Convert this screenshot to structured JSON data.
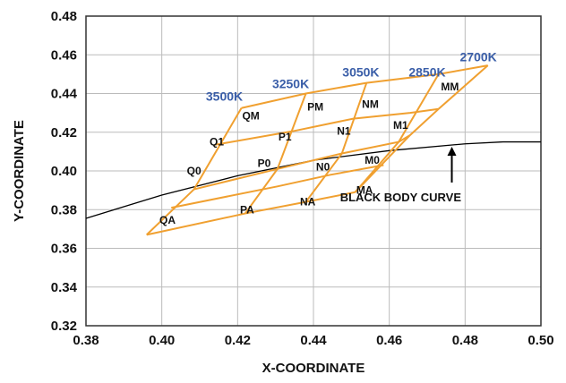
{
  "chart_data": {
    "type": "line",
    "xlabel": "X-COORDINATE",
    "ylabel": "Y-COORDINATE",
    "xlim": [
      0.38,
      0.5
    ],
    "ylim": [
      0.32,
      0.48
    ],
    "x_ticks": [
      "0.38",
      "0.40",
      "0.42",
      "0.44",
      "0.46",
      "0.48",
      "0.50"
    ],
    "y_ticks": [
      "0.32",
      "0.34",
      "0.36",
      "0.38",
      "0.40",
      "0.42",
      "0.44",
      "0.46",
      "0.48"
    ],
    "grid": true,
    "colors": {
      "grid_lines": "#f0a030",
      "curve": "#000000",
      "cct_text": "#3a5ea8",
      "axis_grid": "#bbbbbb"
    },
    "black_body_curve": {
      "label": "BLACK BODY CURVE",
      "points": [
        [
          0.38,
          0.3755
        ],
        [
          0.4,
          0.3875
        ],
        [
          0.42,
          0.3975
        ],
        [
          0.44,
          0.4055
        ],
        [
          0.46,
          0.4105
        ],
        [
          0.48,
          0.414
        ],
        [
          0.49,
          0.415
        ],
        [
          0.5,
          0.415
        ]
      ]
    },
    "bin_grid": {
      "cct_lines": [
        {
          "name": "3500K",
          "points": [
            [
              0.396,
              0.367
            ],
            [
              0.4085,
              0.3905
            ],
            [
              0.421,
              0.4325
            ]
          ]
        },
        {
          "name": "3250K",
          "points": [
            [
              0.422,
              0.378
            ],
            [
              0.4305,
              0.401
            ],
            [
              0.438,
              0.44
            ]
          ]
        },
        {
          "name": "3050K",
          "points": [
            [
              0.438,
              0.384
            ],
            [
              0.4475,
              0.409
            ],
            [
              0.454,
              0.4455
            ]
          ]
        },
        {
          "name": "2850K",
          "points": [
            [
              0.451,
              0.389
            ],
            [
              0.4625,
              0.415
            ],
            [
              0.473,
              0.45
            ]
          ]
        },
        {
          "name": "2700K",
          "points": [
            [
              0.486,
              0.4545
            ]
          ]
        }
      ],
      "cross_lines": [
        [
          [
            0.396,
            0.367
          ],
          [
            0.422,
            0.378
          ],
          [
            0.438,
            0.384
          ],
          [
            0.451,
            0.389
          ]
        ],
        [
          [
            0.4025,
            0.381
          ],
          [
            0.4305,
            0.392
          ],
          [
            0.4445,
            0.398
          ],
          [
            0.4585,
            0.403
          ]
        ],
        [
          [
            0.4085,
            0.3905
          ],
          [
            0.4305,
            0.401
          ],
          [
            0.4475,
            0.409
          ],
          [
            0.4625,
            0.415
          ],
          [
            0.4655,
            0.4185
          ]
        ],
        [
          [
            0.414,
            0.4135
          ],
          [
            0.4345,
            0.4205
          ],
          [
            0.4505,
            0.427
          ],
          [
            0.4655,
            0.43
          ],
          [
            0.473,
            0.432
          ]
        ],
        [
          [
            0.421,
            0.4325
          ],
          [
            0.438,
            0.44
          ],
          [
            0.454,
            0.4455
          ],
          [
            0.473,
            0.45
          ],
          [
            0.486,
            0.4545
          ]
        ]
      ],
      "extra_lines": [
        [
          [
            0.451,
            0.389
          ],
          [
            0.4655,
            0.4185
          ]
        ],
        [
          [
            0.4655,
            0.4185
          ],
          [
            0.473,
            0.432
          ]
        ],
        [
          [
            0.473,
            0.432
          ],
          [
            0.486,
            0.4545
          ]
        ]
      ]
    },
    "bin_labels": [
      {
        "text": "QM",
        "x": 0.4235,
        "y": 0.4285
      },
      {
        "text": "PM",
        "x": 0.4405,
        "y": 0.433
      },
      {
        "text": "NM",
        "x": 0.455,
        "y": 0.4345
      },
      {
        "text": "MM",
        "x": 0.476,
        "y": 0.4435
      },
      {
        "text": "Q1",
        "x": 0.4145,
        "y": 0.415
      },
      {
        "text": "P1",
        "x": 0.4325,
        "y": 0.4175
      },
      {
        "text": "N1",
        "x": 0.448,
        "y": 0.4205
      },
      {
        "text": "M1",
        "x": 0.463,
        "y": 0.4235
      },
      {
        "text": "Q0",
        "x": 0.4085,
        "y": 0.4
      },
      {
        "text": "P0",
        "x": 0.427,
        "y": 0.404
      },
      {
        "text": "N0",
        "x": 0.4425,
        "y": 0.402
      },
      {
        "text": "M0",
        "x": 0.4555,
        "y": 0.4055
      },
      {
        "text": "QA",
        "x": 0.4015,
        "y": 0.3745
      },
      {
        "text": "PA",
        "x": 0.4225,
        "y": 0.38
      },
      {
        "text": "NA",
        "x": 0.4385,
        "y": 0.384
      },
      {
        "text": "MA",
        "x": 0.4535,
        "y": 0.39
      }
    ],
    "cct_labels": [
      {
        "text": "3500K",
        "x": 0.4165,
        "y": 0.4385
      },
      {
        "text": "3250K",
        "x": 0.434,
        "y": 0.445
      },
      {
        "text": "3050K",
        "x": 0.4525,
        "y": 0.451
      },
      {
        "text": "2850K",
        "x": 0.47,
        "y": 0.451
      },
      {
        "text": "2700K",
        "x": 0.4835,
        "y": 0.459
      }
    ],
    "annotation": {
      "text": "BLACK BODY CURVE",
      "text_x": 0.463,
      "text_y": 0.3865,
      "arrow_x": 0.4765,
      "arrow_from_y": 0.394,
      "arrow_to_y": 0.4125
    }
  }
}
